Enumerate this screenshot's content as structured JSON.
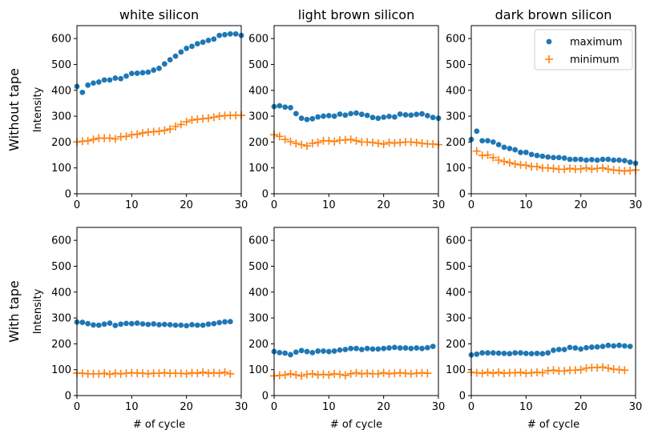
{
  "chart_data": {
    "type": "scatter",
    "columns": [
      "white silicon",
      "light brown silicon",
      "dark brown silicon"
    ],
    "rows": [
      "Without tape",
      "With tape"
    ],
    "ylabel": "Intensity",
    "xlabel": "# of cycle",
    "xlim": [
      0,
      30
    ],
    "ylim": [
      0,
      650
    ],
    "xticks": [
      0,
      10,
      20,
      30
    ],
    "yticks": [
      0,
      100,
      200,
      300,
      400,
      500,
      600
    ],
    "legend": {
      "placement": "top-right",
      "panel": 2
    },
    "series": [
      {
        "name": "maximum",
        "marker": "circle",
        "color": "#1f77b4"
      },
      {
        "name": "minimum",
        "marker": "plus",
        "color": "#ff7f0e"
      }
    ],
    "panels": [
      {
        "row": 0,
        "col": 0,
        "maximum": {
          "x": [
            0,
            1,
            2,
            3,
            4,
            5,
            6,
            7,
            8,
            9,
            10,
            11,
            12,
            13,
            14,
            15,
            16,
            17,
            18,
            19,
            20,
            21,
            22,
            23,
            24,
            25,
            26,
            27,
            28,
            29,
            30
          ],
          "y": [
            415,
            392,
            420,
            428,
            432,
            440,
            440,
            447,
            445,
            455,
            465,
            466,
            468,
            470,
            478,
            485,
            502,
            518,
            532,
            548,
            562,
            570,
            580,
            586,
            593,
            598,
            612,
            615,
            618,
            618,
            612
          ]
        },
        "minimum": {
          "x": [
            0,
            1,
            2,
            3,
            4,
            5,
            6,
            7,
            8,
            9,
            10,
            11,
            12,
            13,
            14,
            15,
            16,
            17,
            18,
            19,
            20,
            21,
            22,
            23,
            24,
            25,
            26,
            27,
            28,
            29,
            30
          ],
          "y": [
            200,
            203,
            205,
            210,
            215,
            215,
            215,
            212,
            220,
            222,
            228,
            230,
            235,
            238,
            240,
            242,
            245,
            250,
            260,
            268,
            278,
            285,
            288,
            290,
            292,
            296,
            300,
            302,
            303,
            303,
            303
          ]
        }
      },
      {
        "row": 0,
        "col": 1,
        "maximum": {
          "x": [
            0,
            1,
            2,
            3,
            4,
            5,
            6,
            7,
            8,
            9,
            10,
            11,
            12,
            13,
            14,
            15,
            16,
            17,
            18,
            19,
            20,
            21,
            22,
            23,
            24,
            25,
            26,
            27,
            28,
            29,
            30
          ],
          "y": [
            337,
            340,
            335,
            333,
            310,
            292,
            287,
            290,
            297,
            300,
            302,
            300,
            308,
            304,
            310,
            312,
            307,
            303,
            295,
            292,
            296,
            299,
            297,
            308,
            305,
            304,
            307,
            309,
            302,
            295,
            292
          ]
        },
        "minimum": {
          "x": [
            0,
            1,
            2,
            3,
            4,
            5,
            6,
            7,
            8,
            9,
            10,
            11,
            12,
            13,
            14,
            15,
            16,
            17,
            18,
            19,
            20,
            21,
            22,
            23,
            24,
            25,
            26,
            27,
            28,
            29,
            30
          ],
          "y": [
            228,
            222,
            210,
            202,
            195,
            190,
            185,
            195,
            198,
            205,
            205,
            202,
            207,
            208,
            210,
            205,
            200,
            200,
            198,
            195,
            192,
            198,
            196,
            198,
            200,
            200,
            198,
            195,
            193,
            192,
            190
          ]
        }
      },
      {
        "row": 0,
        "col": 2,
        "maximum": {
          "x": [
            0,
            1,
            2,
            3,
            4,
            5,
            6,
            7,
            8,
            9,
            10,
            11,
            12,
            13,
            14,
            15,
            16,
            17,
            18,
            19,
            20,
            21,
            22,
            23,
            24,
            25,
            26,
            27,
            28,
            29,
            30
          ],
          "y": [
            210,
            242,
            205,
            205,
            200,
            190,
            180,
            175,
            170,
            160,
            160,
            152,
            148,
            145,
            142,
            140,
            140,
            138,
            133,
            133,
            133,
            130,
            132,
            130,
            133,
            133,
            130,
            130,
            128,
            122,
            118
          ]
        },
        "minimum": {
          "x": [
            1,
            2,
            3,
            4,
            5,
            6,
            7,
            8,
            9,
            10,
            11,
            12,
            13,
            14,
            15,
            16,
            17,
            18,
            19,
            20,
            21,
            22,
            23,
            24,
            25,
            26,
            27,
            28,
            29,
            30
          ],
          "y": [
            165,
            148,
            150,
            140,
            130,
            125,
            120,
            115,
            112,
            110,
            105,
            105,
            100,
            100,
            98,
            95,
            95,
            98,
            95,
            96,
            100,
            95,
            98,
            100,
            95,
            92,
            90,
            88,
            90,
            92
          ]
        }
      },
      {
        "row": 1,
        "col": 0,
        "maximum": {
          "x": [
            0,
            1,
            2,
            3,
            4,
            5,
            6,
            7,
            8,
            9,
            10,
            11,
            12,
            13,
            14,
            15,
            16,
            17,
            18,
            19,
            20,
            21,
            22,
            23,
            24,
            25,
            26,
            27,
            28
          ],
          "y": [
            284,
            283,
            278,
            273,
            272,
            276,
            280,
            271,
            276,
            279,
            278,
            280,
            277,
            275,
            277,
            274,
            275,
            274,
            272,
            272,
            270,
            274,
            272,
            272,
            276,
            278,
            282,
            285,
            286
          ]
        },
        "minimum": {
          "x": [
            0,
            1,
            2,
            3,
            4,
            5,
            6,
            7,
            8,
            9,
            10,
            11,
            12,
            13,
            14,
            15,
            16,
            17,
            18,
            19,
            20,
            21,
            22,
            23,
            24,
            25,
            26,
            27,
            28
          ],
          "y": [
            87,
            86,
            84,
            84,
            84,
            86,
            82,
            86,
            84,
            86,
            88,
            87,
            86,
            84,
            86,
            86,
            88,
            86,
            86,
            86,
            84,
            88,
            86,
            90,
            86,
            88,
            86,
            90,
            84
          ]
        }
      },
      {
        "row": 1,
        "col": 1,
        "maximum": {
          "x": [
            0,
            1,
            2,
            3,
            4,
            5,
            6,
            7,
            8,
            9,
            10,
            11,
            12,
            13,
            14,
            15,
            16,
            17,
            18,
            19,
            20,
            21,
            22,
            23,
            24,
            25,
            26,
            27,
            28,
            29
          ],
          "y": [
            170,
            166,
            164,
            158,
            168,
            174,
            170,
            166,
            172,
            172,
            170,
            172,
            176,
            178,
            182,
            182,
            178,
            182,
            180,
            180,
            182,
            184,
            186,
            184,
            184,
            182,
            184,
            182,
            185,
            190
          ]
        },
        "minimum": {
          "x": [
            0,
            1,
            2,
            3,
            4,
            5,
            6,
            7,
            8,
            9,
            10,
            11,
            12,
            13,
            14,
            15,
            16,
            17,
            18,
            19,
            20,
            21,
            22,
            23,
            24,
            25,
            26,
            27,
            28
          ],
          "y": [
            76,
            78,
            80,
            84,
            80,
            76,
            82,
            84,
            80,
            82,
            80,
            84,
            82,
            78,
            84,
            88,
            84,
            86,
            84,
            84,
            88,
            84,
            86,
            88,
            86,
            84,
            86,
            88,
            86
          ]
        }
      },
      {
        "row": 1,
        "col": 2,
        "maximum": {
          "x": [
            0,
            1,
            2,
            3,
            4,
            5,
            6,
            7,
            8,
            9,
            10,
            11,
            12,
            13,
            14,
            15,
            16,
            17,
            18,
            19,
            20,
            21,
            22,
            23,
            24,
            25,
            26,
            27,
            28,
            29
          ],
          "y": [
            157,
            160,
            165,
            165,
            165,
            164,
            163,
            162,
            165,
            165,
            163,
            162,
            163,
            162,
            165,
            175,
            178,
            178,
            186,
            184,
            180,
            185,
            187,
            188,
            190,
            194,
            192,
            194,
            192,
            190
          ]
        },
        "minimum": {
          "x": [
            0,
            1,
            2,
            3,
            4,
            5,
            6,
            7,
            8,
            9,
            10,
            11,
            12,
            13,
            14,
            15,
            16,
            17,
            18,
            19,
            20,
            21,
            22,
            23,
            24,
            25,
            26,
            27,
            28
          ],
          "y": [
            90,
            88,
            86,
            90,
            86,
            90,
            86,
            88,
            88,
            90,
            86,
            88,
            90,
            88,
            96,
            98,
            95,
            95,
            98,
            98,
            100,
            106,
            108,
            108,
            110,
            106,
            102,
            100,
            98
          ]
        }
      }
    ]
  }
}
